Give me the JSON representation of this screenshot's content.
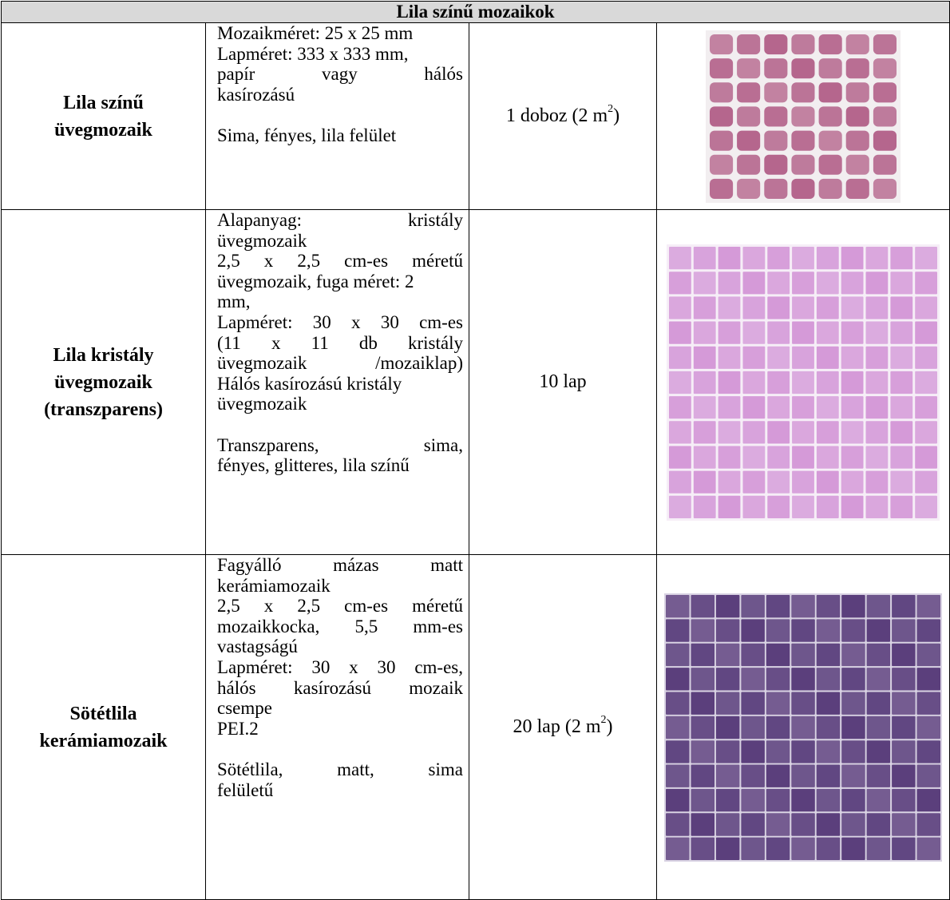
{
  "table": {
    "title": "Lila színű mozaikok",
    "rows": [
      {
        "name_lines": [
          "Lila színű",
          "üvegmozaik"
        ],
        "desc_lines": [
          {
            "words": [
              "Mozaikméret: 25 x 25 mm"
            ],
            "justify": false
          },
          {
            "words": [
              "Lapméret: 333 x 333 mm,"
            ],
            "justify": false
          },
          {
            "words": [
              "papír",
              "vagy",
              "hálós"
            ],
            "justify": true
          },
          {
            "words": [
              "kasírozású"
            ],
            "justify": false
          },
          {
            "gap": true
          },
          {
            "words": [
              "Sima, fényes, lila felület"
            ],
            "justify": false
          }
        ],
        "qty_text": "1 doboz (2 m",
        "qty_sup": "2",
        "qty_tail": ")",
        "image": {
          "color": "#b5668d",
          "grout": "#f2eef0",
          "tiles": 7
        }
      },
      {
        "name_lines": [
          "Lila kristály",
          "üvegmozaik",
          "(transzparens)"
        ],
        "desc_lines": [
          {
            "words": [
              "Alapanyag:",
              "kristály"
            ],
            "justify": true
          },
          {
            "words": [
              "üvegmozaik"
            ],
            "justify": false
          },
          {
            "words": [
              "2,5",
              "x",
              "2,5",
              "cm-es",
              "méretű"
            ],
            "justify": true
          },
          {
            "words": [
              "üvegmozaik, fuga méret: 2"
            ],
            "justify": false
          },
          {
            "words": [
              "mm,"
            ],
            "justify": false
          },
          {
            "words": [
              "Lapméret:",
              "30",
              "x",
              "30",
              "cm-es"
            ],
            "justify": true
          },
          {
            "words": [
              "(11",
              "x",
              "11",
              "db",
              "kristály"
            ],
            "justify": true
          },
          {
            "words": [
              "üvegmozaik",
              "/mozaiklap)"
            ],
            "justify": true
          },
          {
            "words": [
              "Hálós kasírozású kristály"
            ],
            "justify": false
          },
          {
            "words": [
              "üvegmozaik"
            ],
            "justify": false
          },
          {
            "gap": true
          },
          {
            "words": [
              "Transzparens,",
              "sima,"
            ],
            "justify": true
          },
          {
            "words": [
              "fényes, glitteres, lila színű"
            ],
            "justify": false
          }
        ],
        "qty_text": "10 lap",
        "qty_sup": "",
        "qty_tail": "",
        "image": {
          "color": "#d59ad8",
          "grout": "#f6eef7",
          "tiles": 11
        }
      },
      {
        "name_lines": [
          "Sötétlila",
          "kerámiamozaik"
        ],
        "desc_lines": [
          {
            "words": [
              "Fagyálló",
              "mázas",
              "matt"
            ],
            "justify": true
          },
          {
            "words": [
              "kerámiamozaik"
            ],
            "justify": false
          },
          {
            "words": [
              "2,5",
              "x",
              "2,5",
              "cm-es",
              "méretű"
            ],
            "justify": true
          },
          {
            "words": [
              "mozaikkocka,",
              "5,5",
              "mm-es"
            ],
            "justify": true
          },
          {
            "words": [
              "vastagságú"
            ],
            "justify": false
          },
          {
            "words": [
              "Lapméret:",
              "30",
              "x",
              "30",
              "cm-es,"
            ],
            "justify": true
          },
          {
            "words": [
              "hálós",
              "kasírozású",
              "mozaik"
            ],
            "justify": true
          },
          {
            "words": [
              "csempe"
            ],
            "justify": false
          },
          {
            "words": [
              "PEI.2"
            ],
            "justify": false
          },
          {
            "gap": true
          },
          {
            "words": [
              "Sötétlila,",
              "matt,",
              "sima"
            ],
            "justify": true
          },
          {
            "words": [
              "felületű"
            ],
            "justify": false
          }
        ],
        "qty_text": "20 lap (2 m",
        "qty_sup": "2",
        "qty_tail": ")",
        "image": {
          "color": "#5b3f7c",
          "grout": "#d9d3e3",
          "tiles": 11
        }
      }
    ]
  }
}
